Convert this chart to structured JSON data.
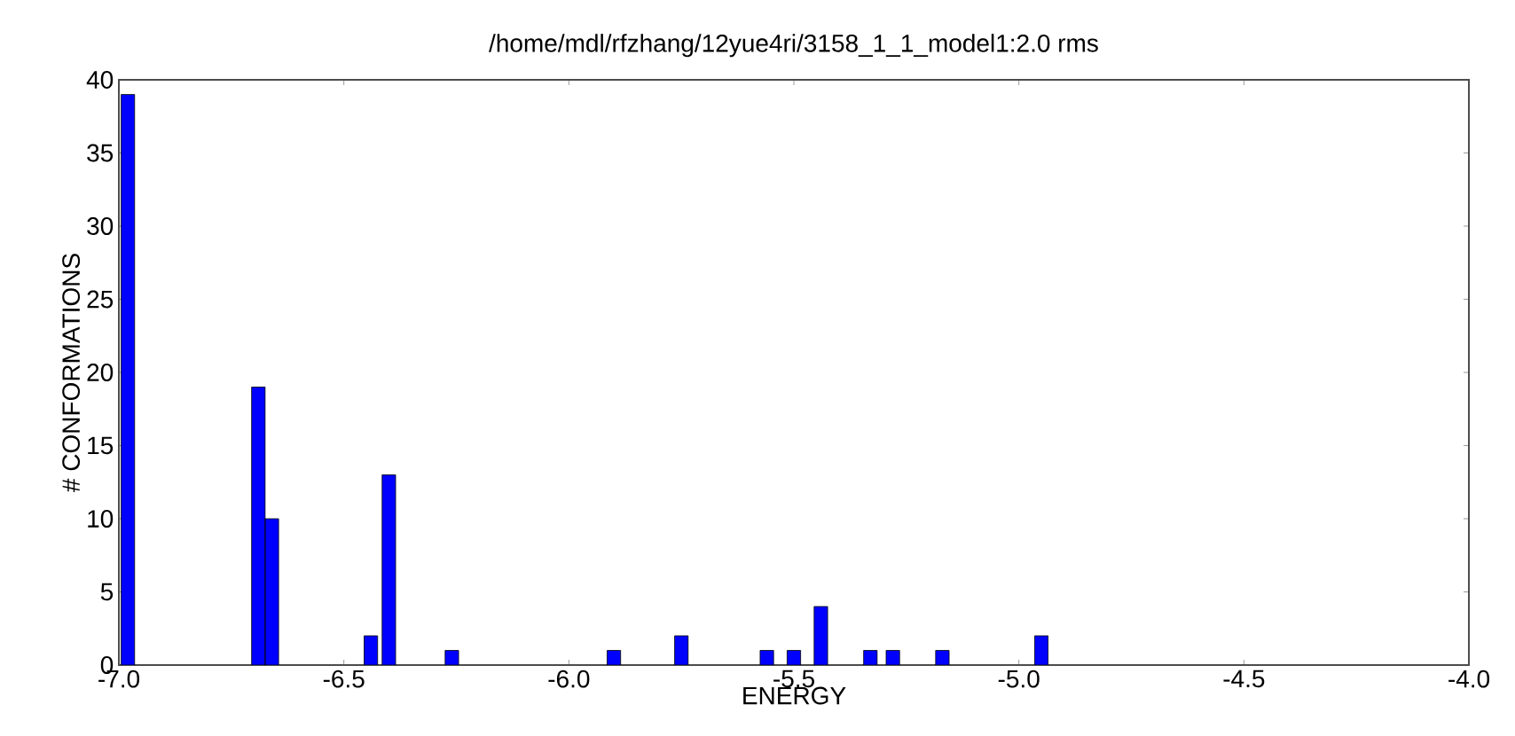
{
  "chart_data": {
    "type": "bar",
    "title": "/home/mdl/rfzhang/12yue4ri/3158_1_1_model1:2.0 rms",
    "xlabel": "ENERGY",
    "ylabel": "# CONFORMATIONS",
    "series": [
      {
        "color": "#0000ff",
        "x": [
          -6.98,
          -6.69,
          -6.66,
          -6.44,
          -6.4,
          -6.26,
          -5.9,
          -5.75,
          -5.56,
          -5.5,
          -5.44,
          -5.33,
          -5.28,
          -5.17,
          -4.95
        ],
        "values": [
          39,
          19,
          10,
          2,
          13,
          1,
          1,
          2,
          1,
          1,
          4,
          1,
          1,
          1,
          2
        ]
      }
    ],
    "xlim": [
      -7.0,
      -4.0
    ],
    "xticks": [
      {
        "value": -7.0,
        "label": "-7.0"
      },
      {
        "value": -6.5,
        "label": "-6.5"
      },
      {
        "value": -6.0,
        "label": "-6.0"
      },
      {
        "value": -5.5,
        "label": "-5.5"
      },
      {
        "value": -5.0,
        "label": "-5.0"
      },
      {
        "value": -4.5,
        "label": "-4.5"
      },
      {
        "value": -4.0,
        "label": "-4.0"
      }
    ],
    "ylim": [
      0,
      40
    ],
    "yticks": [
      0,
      5,
      10,
      15,
      20,
      25,
      30,
      35,
      40
    ],
    "grid": false
  }
}
